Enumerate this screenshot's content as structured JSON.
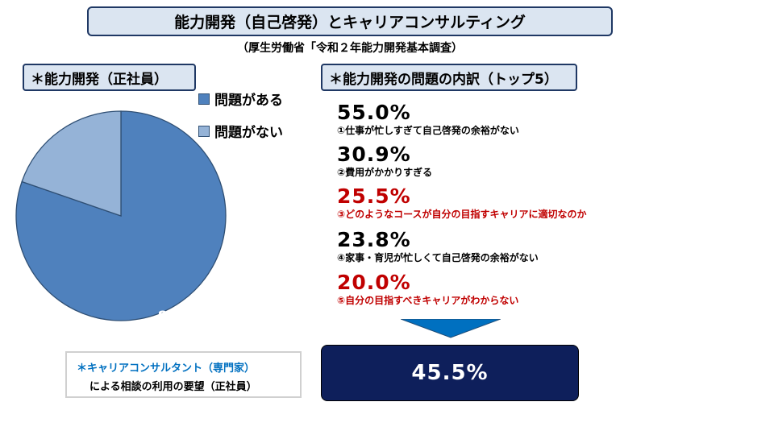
{
  "header": {
    "title": "能力開発（自己啓発）とキャリアコンサルティング",
    "subtitle": "（厚生労働省「令和２年能力開発基本調査）"
  },
  "left_section": {
    "label": "＊能力開発（正社員）"
  },
  "right_section": {
    "label": "＊能力開発の問題の内訳（トップ5）",
    "items": [
      {
        "pct": "55.0%",
        "text": "①仕事が忙しすぎて自己啓発の余裕がない",
        "highlight": false
      },
      {
        "pct": "30.9%",
        "text": "②費用がかかりすぎる",
        "highlight": false
      },
      {
        "pct": "25.5%",
        "text": "③どのようなコースが自分の目指すキャリアに適切なのか",
        "highlight": true
      },
      {
        "pct": "23.8%",
        "text": "④家事・育児が忙しくて自己啓発の余裕がない",
        "highlight": false
      },
      {
        "pct": "20.0%",
        "text": "⑤自分の目指すべきキャリアがわからない",
        "highlight": true
      }
    ]
  },
  "consult": {
    "line1": "＊キャリアコンサルタント（専門家）",
    "line2": "による相談の利用の要望（正社員）"
  },
  "result": {
    "value": "45.5%"
  },
  "colors": {
    "slice_main": "#4f81bd",
    "slice_other": "#95b3d7",
    "highlight": "#c00000",
    "navy": "#0e1f5b",
    "arrow": "#0070c0"
  },
  "chart_data": {
    "type": "pie",
    "title": "",
    "categories": [
      "問題がある",
      "問題がない"
    ],
    "values": [
      80.3,
      19.7
    ],
    "data_labels": [
      "80.3%",
      ""
    ],
    "legend": "right"
  }
}
